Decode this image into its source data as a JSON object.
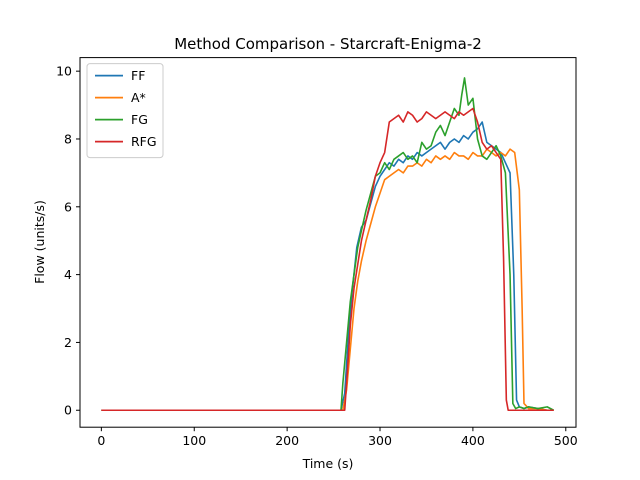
{
  "chart_data": {
    "type": "line",
    "title": "Method Comparison - Starcraft-Enigma-2",
    "xlabel": "Time (s)",
    "ylabel": "Flow (units/s)",
    "xlim": [
      -23,
      511
    ],
    "ylim": [
      -0.5,
      10.4
    ],
    "xticks": [
      0,
      100,
      200,
      300,
      400,
      500
    ],
    "yticks": [
      0,
      2,
      4,
      6,
      8,
      10
    ],
    "grid": false,
    "legend_position": "top-left",
    "series": [
      {
        "name": "FF",
        "color": "#1f77b4",
        "points": [
          [
            0,
            0
          ],
          [
            100,
            0
          ],
          [
            200,
            0
          ],
          [
            258,
            0
          ],
          [
            262,
            0.5
          ],
          [
            266,
            2.2
          ],
          [
            270,
            3.5
          ],
          [
            275,
            4.8
          ],
          [
            280,
            5.4
          ],
          [
            285,
            5.6
          ],
          [
            290,
            6.1
          ],
          [
            295,
            6.6
          ],
          [
            300,
            6.9
          ],
          [
            305,
            7.1
          ],
          [
            310,
            7.3
          ],
          [
            315,
            7.2
          ],
          [
            320,
            7.4
          ],
          [
            325,
            7.3
          ],
          [
            330,
            7.5
          ],
          [
            335,
            7.4
          ],
          [
            340,
            7.6
          ],
          [
            345,
            7.5
          ],
          [
            350,
            7.6
          ],
          [
            355,
            7.7
          ],
          [
            360,
            7.8
          ],
          [
            365,
            7.9
          ],
          [
            370,
            7.7
          ],
          [
            375,
            7.9
          ],
          [
            380,
            8.0
          ],
          [
            385,
            7.9
          ],
          [
            390,
            8.1
          ],
          [
            395,
            8.0
          ],
          [
            400,
            8.2
          ],
          [
            405,
            8.3
          ],
          [
            410,
            8.5
          ],
          [
            415,
            7.9
          ],
          [
            420,
            7.8
          ],
          [
            425,
            7.7
          ],
          [
            430,
            7.6
          ],
          [
            435,
            7.3
          ],
          [
            440,
            7.0
          ],
          [
            444,
            4.0
          ],
          [
            447,
            0.3
          ],
          [
            450,
            0.1
          ],
          [
            455,
            0.05
          ],
          [
            460,
            0.1
          ],
          [
            470,
            0.05
          ],
          [
            480,
            0
          ],
          [
            487,
            0
          ]
        ]
      },
      {
        "name": "A*",
        "color": "#ff7f0e",
        "points": [
          [
            0,
            0
          ],
          [
            100,
            0
          ],
          [
            200,
            0
          ],
          [
            260,
            0
          ],
          [
            264,
            0.6
          ],
          [
            268,
            1.8
          ],
          [
            272,
            3.0
          ],
          [
            276,
            3.8
          ],
          [
            280,
            4.4
          ],
          [
            285,
            5.0
          ],
          [
            290,
            5.5
          ],
          [
            295,
            6.0
          ],
          [
            300,
            6.4
          ],
          [
            305,
            6.8
          ],
          [
            310,
            6.9
          ],
          [
            315,
            7.0
          ],
          [
            320,
            7.1
          ],
          [
            325,
            7.0
          ],
          [
            330,
            7.2
          ],
          [
            335,
            7.2
          ],
          [
            340,
            7.3
          ],
          [
            345,
            7.2
          ],
          [
            350,
            7.4
          ],
          [
            355,
            7.3
          ],
          [
            360,
            7.5
          ],
          [
            365,
            7.4
          ],
          [
            370,
            7.5
          ],
          [
            375,
            7.4
          ],
          [
            380,
            7.6
          ],
          [
            385,
            7.5
          ],
          [
            390,
            7.5
          ],
          [
            395,
            7.4
          ],
          [
            400,
            7.6
          ],
          [
            405,
            7.5
          ],
          [
            410,
            7.5
          ],
          [
            415,
            7.7
          ],
          [
            420,
            7.6
          ],
          [
            425,
            7.5
          ],
          [
            430,
            7.6
          ],
          [
            435,
            7.5
          ],
          [
            440,
            7.7
          ],
          [
            445,
            7.6
          ],
          [
            450,
            6.5
          ],
          [
            453,
            3.0
          ],
          [
            455,
            0.2
          ],
          [
            460,
            0.05
          ],
          [
            470,
            0.05
          ],
          [
            480,
            0
          ],
          [
            487,
            0
          ]
        ]
      },
      {
        "name": "FG",
        "color": "#2ca02c",
        "points": [
          [
            0,
            0
          ],
          [
            100,
            0
          ],
          [
            200,
            0
          ],
          [
            258,
            0
          ],
          [
            260,
            0.8
          ],
          [
            264,
            2.0
          ],
          [
            268,
            3.2
          ],
          [
            272,
            4.0
          ],
          [
            276,
            4.8
          ],
          [
            280,
            5.3
          ],
          [
            285,
            5.9
          ],
          [
            290,
            6.4
          ],
          [
            295,
            6.9
          ],
          [
            300,
            7.0
          ],
          [
            305,
            7.3
          ],
          [
            310,
            7.1
          ],
          [
            315,
            7.4
          ],
          [
            320,
            7.5
          ],
          [
            325,
            7.6
          ],
          [
            330,
            7.4
          ],
          [
            335,
            7.5
          ],
          [
            340,
            7.3
          ],
          [
            345,
            7.9
          ],
          [
            350,
            7.7
          ],
          [
            355,
            7.8
          ],
          [
            360,
            8.2
          ],
          [
            365,
            8.4
          ],
          [
            370,
            8.1
          ],
          [
            375,
            8.5
          ],
          [
            380,
            8.9
          ],
          [
            385,
            8.7
          ],
          [
            388,
            9.3
          ],
          [
            391,
            9.8
          ],
          [
            395,
            9.0
          ],
          [
            400,
            9.2
          ],
          [
            405,
            8.0
          ],
          [
            410,
            7.5
          ],
          [
            415,
            7.4
          ],
          [
            420,
            7.6
          ],
          [
            425,
            7.8
          ],
          [
            430,
            7.5
          ],
          [
            435,
            7.0
          ],
          [
            440,
            4.0
          ],
          [
            443,
            0.2
          ],
          [
            446,
            0.05
          ],
          [
            450,
            0.1
          ],
          [
            455,
            0.05
          ],
          [
            460,
            0.1
          ],
          [
            470,
            0.05
          ],
          [
            480,
            0.1
          ],
          [
            487,
            0
          ]
        ]
      },
      {
        "name": "RFG",
        "color": "#d62728",
        "points": [
          [
            0,
            0
          ],
          [
            100,
            0
          ],
          [
            200,
            0
          ],
          [
            262,
            0
          ],
          [
            265,
            1.2
          ],
          [
            268,
            2.5
          ],
          [
            272,
            3.6
          ],
          [
            276,
            4.3
          ],
          [
            280,
            5.0
          ],
          [
            285,
            5.6
          ],
          [
            290,
            6.2
          ],
          [
            295,
            6.9
          ],
          [
            300,
            7.3
          ],
          [
            305,
            7.6
          ],
          [
            310,
            8.5
          ],
          [
            315,
            8.6
          ],
          [
            320,
            8.7
          ],
          [
            325,
            8.5
          ],
          [
            330,
            8.8
          ],
          [
            335,
            8.7
          ],
          [
            340,
            8.5
          ],
          [
            345,
            8.6
          ],
          [
            350,
            8.8
          ],
          [
            355,
            8.7
          ],
          [
            360,
            8.6
          ],
          [
            365,
            8.7
          ],
          [
            370,
            8.8
          ],
          [
            375,
            8.7
          ],
          [
            380,
            8.6
          ],
          [
            385,
            8.8
          ],
          [
            390,
            8.7
          ],
          [
            395,
            8.8
          ],
          [
            400,
            8.9
          ],
          [
            405,
            8.5
          ],
          [
            410,
            7.9
          ],
          [
            415,
            7.7
          ],
          [
            420,
            7.8
          ],
          [
            425,
            7.6
          ],
          [
            430,
            7.4
          ],
          [
            433,
            4.5
          ],
          [
            436,
            0.3
          ],
          [
            438,
            0
          ],
          [
            450,
            0
          ],
          [
            470,
            0
          ],
          [
            487,
            0
          ]
        ]
      }
    ]
  }
}
